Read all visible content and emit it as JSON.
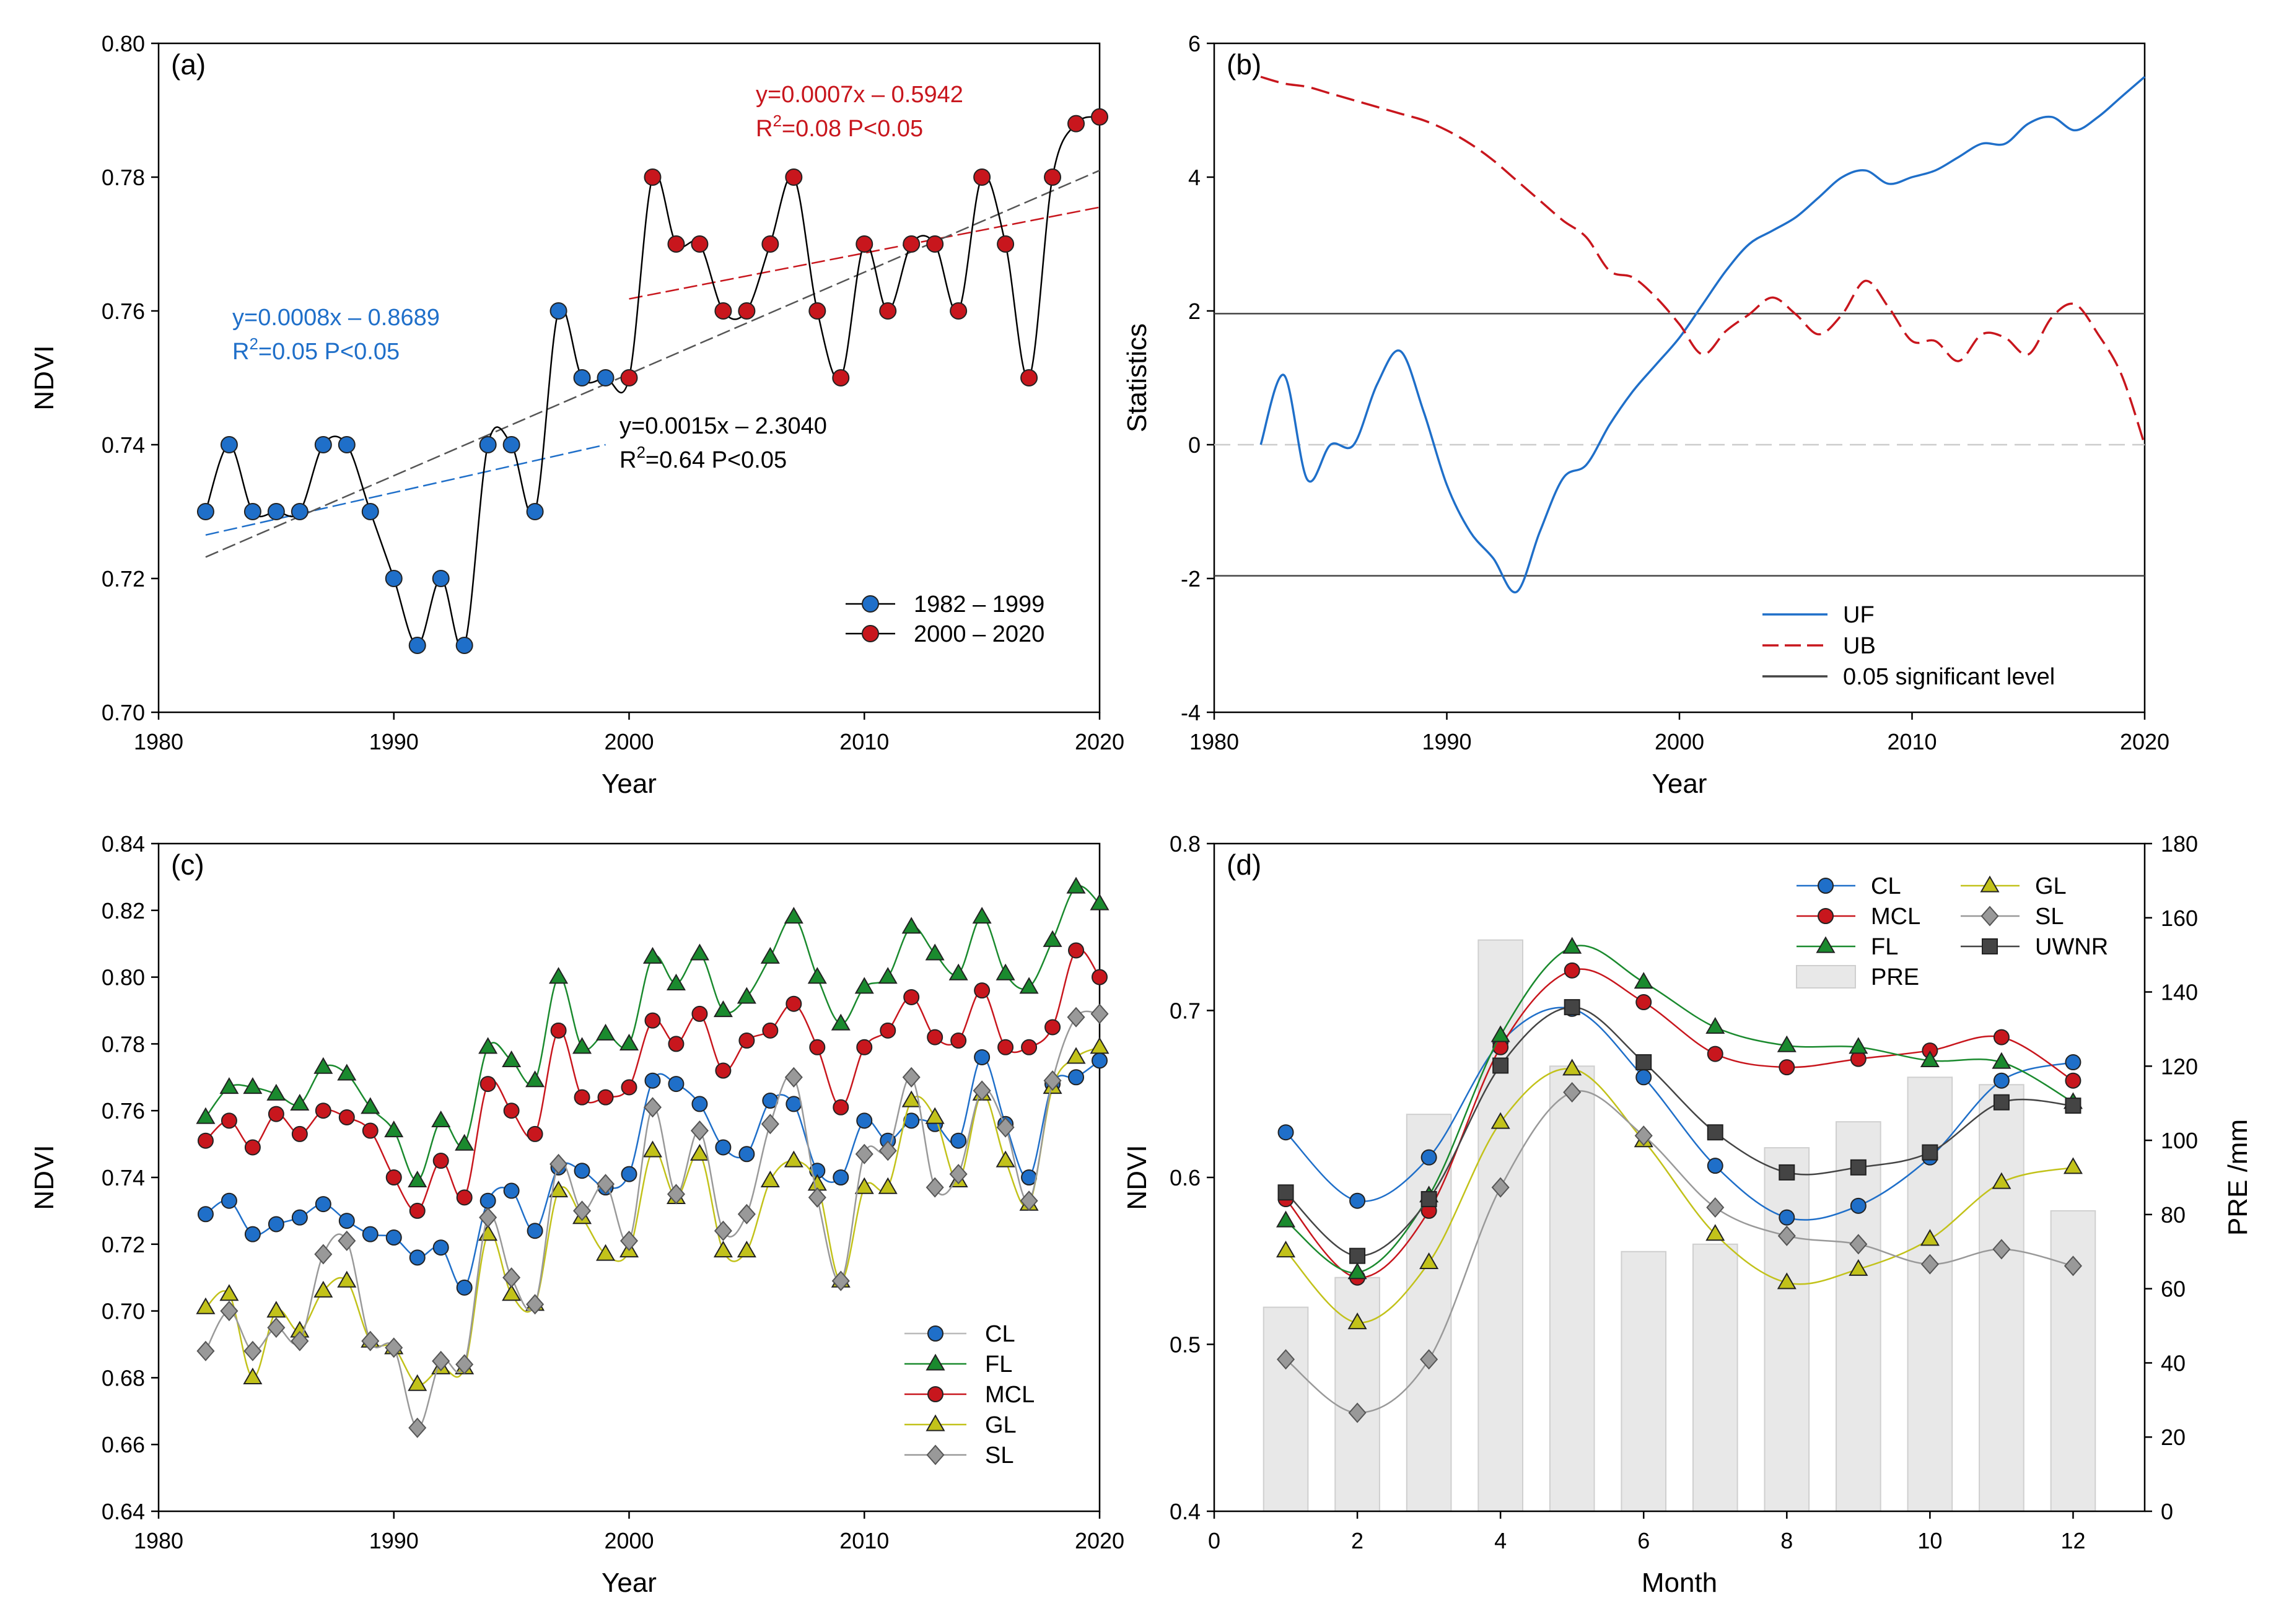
{
  "figure": {
    "panels": [
      "(a)",
      "(b)",
      "(c)",
      "(d)"
    ]
  },
  "chart_data": [
    {
      "id": "a",
      "type": "line",
      "panel_label": "(a)",
      "xlabel": "Year",
      "ylabel": "NDVI",
      "xlim": [
        1980,
        2020
      ],
      "ylim": [
        0.7,
        0.8
      ],
      "xticks": [
        "1980",
        "1990",
        "2000",
        "2010",
        "2020"
      ],
      "yticks": [
        "0.70",
        "0.72",
        "0.74",
        "0.76",
        "0.78",
        "0.80"
      ],
      "series": [
        {
          "name": "1982 – 1999",
          "color": "#1f6fc9",
          "x": [
            1982,
            1983,
            1984,
            1985,
            1986,
            1987,
            1988,
            1989,
            1990,
            1991,
            1992,
            1993,
            1994,
            1995,
            1996,
            1997,
            1998,
            1999
          ],
          "y": [
            0.73,
            0.74,
            0.73,
            0.73,
            0.73,
            0.74,
            0.74,
            0.73,
            0.72,
            0.71,
            0.72,
            0.71,
            0.74,
            0.74,
            0.73,
            0.76,
            0.75,
            0.75
          ]
        },
        {
          "name": "2000 – 2020",
          "color": "#c8161d",
          "x": [
            2000,
            2001,
            2002,
            2003,
            2004,
            2005,
            2006,
            2007,
            2008,
            2009,
            2010,
            2011,
            2012,
            2013,
            2014,
            2015,
            2016,
            2017,
            2018,
            2019,
            2020
          ],
          "y": [
            0.75,
            0.78,
            0.77,
            0.77,
            0.76,
            0.76,
            0.77,
            0.78,
            0.76,
            0.75,
            0.77,
            0.76,
            0.77,
            0.77,
            0.76,
            0.78,
            0.77,
            0.75,
            0.78,
            0.788,
            0.789
          ]
        }
      ],
      "trendlines": [
        {
          "name": "1982-1999",
          "x": [
            1982,
            1999
          ],
          "y": [
            0.7265,
            0.74
          ],
          "color": "#1f6fc9"
        },
        {
          "name": "2000-2020",
          "x": [
            2000,
            2020
          ],
          "y": [
            0.7618,
            0.7755
          ],
          "color": "#c8161d"
        },
        {
          "name": "1982-2020",
          "x": [
            1982,
            2020
          ],
          "y": [
            0.7232,
            0.781
          ],
          "color": "#555555"
        }
      ],
      "annotations": [
        {
          "eq": "y=0.0007x – 0.5942",
          "r2": "2",
          "stat_prefix": "R",
          "stat_suffix": "=0.08 P<0.05",
          "color": "#c8161d"
        },
        {
          "eq": "y=0.0008x – 0.8689",
          "r2": "2",
          "stat_prefix": "R",
          "stat_suffix": "=0.05 P<0.05",
          "color": "#1f6fc9"
        },
        {
          "eq": "y=0.0015x – 2.3040",
          "r2": "2",
          "stat_prefix": "R",
          "stat_suffix": "=0.64 P<0.05",
          "color": "#000000"
        }
      ],
      "legend_position": "bottom-right"
    },
    {
      "id": "b",
      "type": "line",
      "panel_label": "(b)",
      "xlabel": "Year",
      "ylabel": "Statistics",
      "xlim": [
        1980,
        2020
      ],
      "ylim": [
        -4,
        6
      ],
      "xticks": [
        "1980",
        "1990",
        "2000",
        "2010",
        "2020"
      ],
      "yticks": [
        "-4",
        "-2",
        "0",
        "2",
        "4",
        "6"
      ],
      "series": [
        {
          "name": "UF",
          "style": "solid",
          "color": "#1f6fc9",
          "x": [
            1982,
            1983,
            1984,
            1985,
            1986,
            1987,
            1988,
            1989,
            1990,
            1991,
            1992,
            1993,
            1994,
            1995,
            1996,
            1997,
            1998,
            1999,
            2000,
            2001,
            2002,
            2003,
            2004,
            2005,
            2006,
            2007,
            2008,
            2009,
            2010,
            2011,
            2012,
            2013,
            2014,
            2015,
            2016,
            2017,
            2018,
            2019,
            2020
          ],
          "y": [
            0.0,
            1.04,
            -0.52,
            0.0,
            0.0,
            0.9,
            1.4,
            0.5,
            -0.6,
            -1.3,
            -1.7,
            -2.2,
            -1.3,
            -0.5,
            -0.3,
            0.3,
            0.8,
            1.2,
            1.6,
            2.1,
            2.6,
            3.0,
            3.2,
            3.4,
            3.7,
            4.0,
            4.1,
            3.9,
            4.0,
            4.1,
            4.3,
            4.5,
            4.5,
            4.8,
            4.9,
            4.7,
            4.9,
            5.2,
            5.5
          ]
        },
        {
          "name": "UB",
          "style": "dashed",
          "color": "#c8161d",
          "x": [
            1982,
            1983,
            1984,
            1985,
            1986,
            1987,
            1988,
            1989,
            1990,
            1991,
            1992,
            1993,
            1994,
            1995,
            1996,
            1997,
            1998,
            1999,
            2000,
            2001,
            2002,
            2003,
            2004,
            2005,
            2006,
            2007,
            2008,
            2009,
            2010,
            2011,
            2012,
            2013,
            2014,
            2015,
            2016,
            2017,
            2018,
            2019,
            2020
          ],
          "y": [
            5.5,
            5.4,
            5.35,
            5.25,
            5.15,
            5.05,
            4.95,
            4.85,
            4.7,
            4.5,
            4.25,
            3.95,
            3.65,
            3.35,
            3.1,
            2.6,
            2.5,
            2.2,
            1.8,
            1.35,
            1.7,
            1.95,
            2.2,
            1.95,
            1.65,
            1.95,
            2.45,
            2.05,
            1.55,
            1.55,
            1.25,
            1.65,
            1.6,
            1.35,
            1.9,
            2.1,
            1.65,
            1.05,
            0.0
          ]
        }
      ],
      "hlines": [
        {
          "name": "0.05 significant level",
          "values": [
            1.96,
            -1.96
          ],
          "color": "#444444"
        }
      ],
      "zero_line": {
        "value": 0,
        "color": "#cccccc",
        "style": "dashed"
      },
      "legend_position": "bottom-right"
    },
    {
      "id": "c",
      "type": "line",
      "panel_label": "(c)",
      "xlabel": "Year",
      "ylabel": "NDVI",
      "xlim": [
        1980,
        2020
      ],
      "ylim": [
        0.64,
        0.84
      ],
      "xticks": [
        "1980",
        "1990",
        "2000",
        "2010",
        "2020"
      ],
      "yticks": [
        "0.64",
        "0.66",
        "0.68",
        "0.70",
        "0.72",
        "0.74",
        "0.76",
        "0.78",
        "0.80",
        "0.82",
        "0.84"
      ],
      "x": [
        1982,
        1983,
        1984,
        1985,
        1986,
        1987,
        1988,
        1989,
        1990,
        1991,
        1992,
        1993,
        1994,
        1995,
        1996,
        1997,
        1998,
        1999,
        2000,
        2001,
        2002,
        2003,
        2004,
        2005,
        2006,
        2007,
        2008,
        2009,
        2010,
        2011,
        2012,
        2013,
        2014,
        2015,
        2016,
        2017,
        2018,
        2019,
        2020
      ],
      "series": [
        {
          "name": "CL",
          "marker": "circle",
          "color": "#1f6fc9",
          "values": [
            0.729,
            0.733,
            0.723,
            0.726,
            0.728,
            0.732,
            0.727,
            0.723,
            0.722,
            0.716,
            0.719,
            0.707,
            0.733,
            0.736,
            0.724,
            0.743,
            0.742,
            0.737,
            0.741,
            0.769,
            0.768,
            0.762,
            0.749,
            0.747,
            0.763,
            0.762,
            0.742,
            0.74,
            0.757,
            0.751,
            0.757,
            0.756,
            0.751,
            0.776,
            0.756,
            0.74,
            0.768,
            0.77,
            0.775
          ]
        },
        {
          "name": "FL",
          "marker": "triangle",
          "color": "#1a8a2e",
          "values": [
            0.758,
            0.767,
            0.767,
            0.765,
            0.762,
            0.773,
            0.771,
            0.761,
            0.754,
            0.739,
            0.757,
            0.75,
            0.779,
            0.775,
            0.769,
            0.8,
            0.779,
            0.783,
            0.78,
            0.806,
            0.798,
            0.807,
            0.79,
            0.794,
            0.806,
            0.818,
            0.8,
            0.786,
            0.797,
            0.8,
            0.815,
            0.807,
            0.801,
            0.818,
            0.801,
            0.797,
            0.811,
            0.827,
            0.822
          ]
        },
        {
          "name": "MCL",
          "marker": "circle",
          "color": "#c8161d",
          "values": [
            0.751,
            0.757,
            0.749,
            0.759,
            0.753,
            0.76,
            0.758,
            0.754,
            0.74,
            0.73,
            0.745,
            0.734,
            0.768,
            0.76,
            0.753,
            0.784,
            0.764,
            0.764,
            0.767,
            0.787,
            0.78,
            0.789,
            0.772,
            0.781,
            0.784,
            0.792,
            0.779,
            0.761,
            0.779,
            0.784,
            0.794,
            0.782,
            0.781,
            0.796,
            0.779,
            0.779,
            0.785,
            0.808,
            0.8
          ]
        },
        {
          "name": "GL",
          "marker": "triangle",
          "color": "#c2c21a",
          "values": [
            0.701,
            0.705,
            0.68,
            0.7,
            0.694,
            0.706,
            0.709,
            0.691,
            0.689,
            0.678,
            0.683,
            0.683,
            0.723,
            0.705,
            0.702,
            0.736,
            0.728,
            0.717,
            0.718,
            0.748,
            0.734,
            0.747,
            0.718,
            0.718,
            0.739,
            0.745,
            0.738,
            0.709,
            0.737,
            0.737,
            0.763,
            0.758,
            0.739,
            0.765,
            0.745,
            0.732,
            0.767,
            0.776,
            0.779
          ]
        },
        {
          "name": "SL",
          "marker": "diamond",
          "color": "#999999",
          "values": [
            0.688,
            0.7,
            0.688,
            0.695,
            0.691,
            0.717,
            0.721,
            0.691,
            0.689,
            0.665,
            0.685,
            0.684,
            0.728,
            0.71,
            0.702,
            0.744,
            0.73,
            0.738,
            0.721,
            0.761,
            0.735,
            0.754,
            0.724,
            0.729,
            0.756,
            0.77,
            0.734,
            0.709,
            0.747,
            0.748,
            0.77,
            0.737,
            0.741,
            0.766,
            0.755,
            0.733,
            0.769,
            0.788,
            0.789
          ]
        }
      ],
      "legend_position": "bottom-right"
    },
    {
      "id": "d",
      "type": "line",
      "panel_label": "(d)",
      "xlabel": "Month",
      "ylabel": "NDVI",
      "y2label": "PRE /mm",
      "xlim": [
        0,
        13
      ],
      "ylim": [
        0.4,
        0.8
      ],
      "y2lim": [
        0,
        180
      ],
      "xticks": [
        "0",
        "2",
        "4",
        "6",
        "8",
        "10",
        "12"
      ],
      "yticks": [
        "0.4",
        "0.5",
        "0.6",
        "0.7",
        "0.8"
      ],
      "y2ticks": [
        "0",
        "20",
        "40",
        "60",
        "80",
        "100",
        "120",
        "140",
        "160",
        "180"
      ],
      "x": [
        1,
        2,
        3,
        4,
        5,
        6,
        7,
        8,
        9,
        10,
        11,
        12
      ],
      "bars": {
        "name": "PRE",
        "color": "#e8e8e8",
        "values": [
          55,
          63,
          107,
          154,
          120,
          70,
          72,
          98,
          105,
          117,
          115,
          81
        ]
      },
      "series": [
        {
          "name": "CL",
          "marker": "circle",
          "color": "#1f6fc9",
          "values": [
            0.627,
            0.586,
            0.612,
            0.681,
            0.701,
            0.66,
            0.607,
            0.576,
            0.583,
            0.612,
            0.658,
            0.669
          ]
        },
        {
          "name": "MCL",
          "marker": "circle",
          "color": "#c8161d",
          "values": [
            0.587,
            0.54,
            0.58,
            0.678,
            0.724,
            0.705,
            0.674,
            0.666,
            0.671,
            0.676,
            0.684,
            0.658
          ]
        },
        {
          "name": "FL",
          "marker": "triangle",
          "color": "#1a8a2e",
          "values": [
            0.574,
            0.543,
            0.589,
            0.685,
            0.738,
            0.717,
            0.69,
            0.679,
            0.678,
            0.67,
            0.669,
            0.645
          ]
        },
        {
          "name": "GL",
          "marker": "triangle",
          "color": "#c2c21a",
          "values": [
            0.556,
            0.513,
            0.549,
            0.633,
            0.665,
            0.622,
            0.566,
            0.537,
            0.545,
            0.563,
            0.597,
            0.606
          ]
        },
        {
          "name": "SL",
          "marker": "diamond",
          "color": "#999999",
          "values": [
            0.491,
            0.459,
            0.491,
            0.594,
            0.651,
            0.625,
            0.582,
            0.565,
            0.56,
            0.548,
            0.557,
            0.547
          ]
        },
        {
          "name": "UWNR",
          "marker": "square",
          "color": "#444444",
          "values": [
            0.591,
            0.553,
            0.587,
            0.667,
            0.702,
            0.669,
            0.627,
            0.603,
            0.606,
            0.615,
            0.645,
            0.643
          ]
        }
      ],
      "legend_position": "top-right"
    }
  ]
}
